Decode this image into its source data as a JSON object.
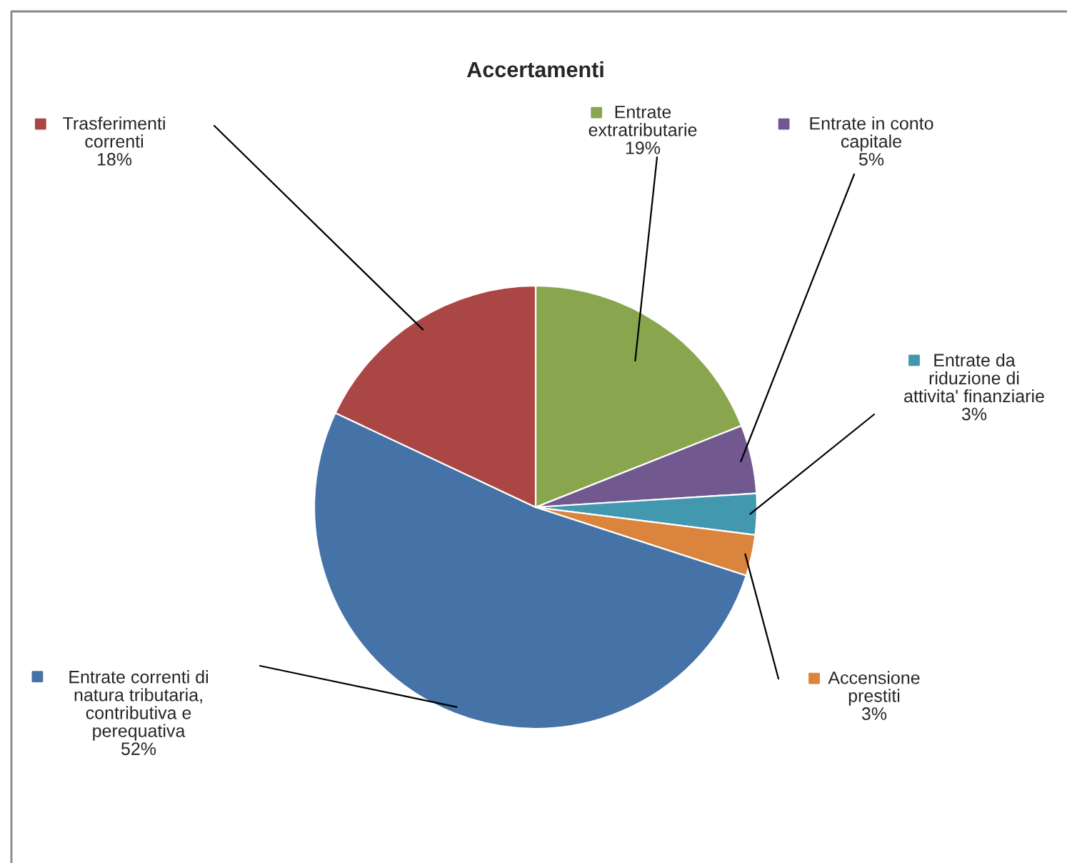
{
  "chart_data": {
    "type": "pie",
    "title": "Accertamenti",
    "categories": [
      "Entrate\nextratributarie",
      "Entrate in conto\ncapitale",
      "Entrate da\nriduzione di\nattivita' finanziarie",
      "Accensione\nprestiti",
      "Entrate correnti di\nnatura tributaria,\ncontributiva e\nperequativa",
      "Trasferimenti\ncorrenti"
    ],
    "values": [
      19,
      5,
      3,
      3,
      52,
      18
    ],
    "colors": [
      "#89a54e",
      "#71588f",
      "#4198af",
      "#db843d",
      "#4572a7",
      "#aa4643"
    ],
    "value_labels": [
      "19%",
      "5%",
      "3%",
      "3%",
      "52%",
      "18%"
    ],
    "legend": "top"
  }
}
